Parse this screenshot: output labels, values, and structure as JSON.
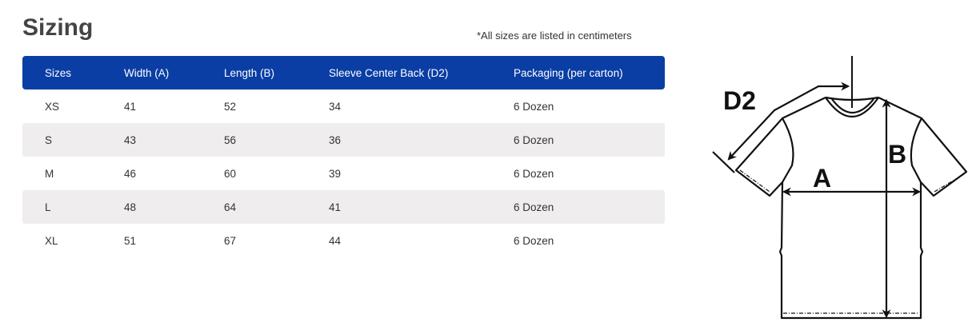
{
  "title": "Sizing",
  "note": "*All sizes are listed in centimeters",
  "columns": [
    "Sizes",
    "Width (A)",
    "Length (B)",
    "Sleeve Center Back (D2)",
    "Packaging (per carton)"
  ],
  "rows": [
    [
      "XS",
      "41",
      "52",
      "34",
      "6 Dozen"
    ],
    [
      "S",
      "43",
      "56",
      "36",
      "6 Dozen"
    ],
    [
      "M",
      "46",
      "60",
      "39",
      "6 Dozen"
    ],
    [
      "L",
      "48",
      "64",
      "41",
      "6 Dozen"
    ],
    [
      "XL",
      "51",
      "67",
      "44",
      "6 Dozen"
    ]
  ],
  "diagram": {
    "labels": {
      "d2": "D2",
      "a": "A",
      "b": "B"
    }
  },
  "colors": {
    "header": "#0a3ea5",
    "alt_row": "#efeded"
  }
}
